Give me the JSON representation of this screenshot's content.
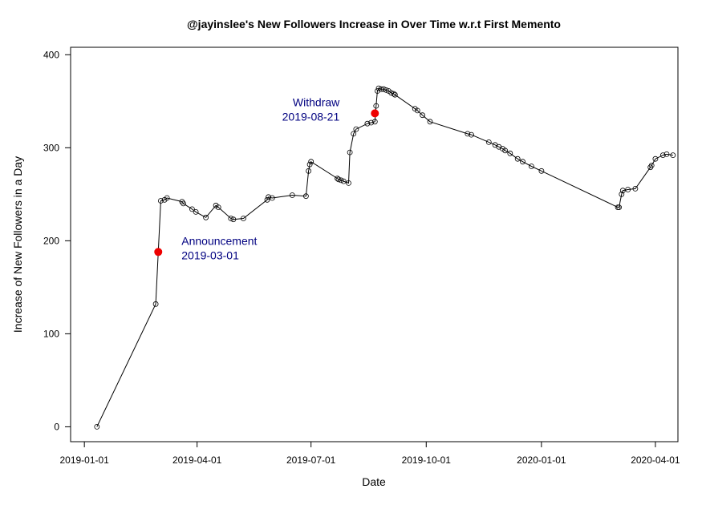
{
  "chart_data": {
    "type": "line",
    "title": "@jayinslee's New Followers Increase in Over Time w.r.t First Memento",
    "xlabel": "Date",
    "ylabel": "Increase of New Followers in a Day",
    "x_ticks": [
      "2019-01-01",
      "2019-04-01",
      "2019-07-01",
      "2019-10-01",
      "2020-01-01",
      "2020-04-01"
    ],
    "y_ticks": [
      0,
      100,
      200,
      300,
      400
    ],
    "xlim": [
      "2018-12-21",
      "2020-04-19"
    ],
    "ylim": [
      -16,
      408
    ],
    "grid": false,
    "series": [
      {
        "line_color": "#000000",
        "marker": "open-circle",
        "points": [
          [
            "2019-01-11",
            0
          ],
          [
            "2019-02-27",
            132
          ],
          [
            "2019-03-03",
            243
          ],
          [
            "2019-03-06",
            244
          ],
          [
            "2019-03-08",
            246
          ],
          [
            "2019-03-20",
            242
          ],
          [
            "2019-03-21",
            240
          ],
          [
            "2019-03-28",
            234
          ],
          [
            "2019-03-31",
            231
          ],
          [
            "2019-04-08",
            225
          ],
          [
            "2019-04-16",
            238
          ],
          [
            "2019-04-18",
            236
          ],
          [
            "2019-04-28",
            224
          ],
          [
            "2019-04-30",
            223
          ],
          [
            "2019-05-08",
            224
          ],
          [
            "2019-05-27",
            244
          ],
          [
            "2019-05-28",
            247
          ],
          [
            "2019-05-31",
            246
          ],
          [
            "2019-06-16",
            249
          ],
          [
            "2019-06-27",
            248
          ],
          [
            "2019-06-29",
            275
          ],
          [
            "2019-06-30",
            282
          ],
          [
            "2019-07-01",
            285
          ],
          [
            "2019-07-22",
            267
          ],
          [
            "2019-07-23",
            266
          ],
          [
            "2019-07-25",
            265
          ],
          [
            "2019-07-27",
            264
          ],
          [
            "2019-07-31",
            262
          ],
          [
            "2019-08-01",
            295
          ],
          [
            "2019-08-04",
            315
          ],
          [
            "2019-08-06",
            320
          ],
          [
            "2019-08-15",
            326
          ],
          [
            "2019-08-18",
            327
          ],
          [
            "2019-08-21",
            328
          ],
          [
            "2019-08-22",
            345
          ],
          [
            "2019-08-23",
            361
          ],
          [
            "2019-08-24",
            364
          ],
          [
            "2019-08-26",
            363
          ],
          [
            "2019-08-28",
            363
          ],
          [
            "2019-08-30",
            362
          ],
          [
            "2019-09-01",
            361
          ],
          [
            "2019-09-03",
            359
          ],
          [
            "2019-09-05",
            358
          ],
          [
            "2019-09-06",
            357
          ],
          [
            "2019-09-22",
            342
          ],
          [
            "2019-09-24",
            340
          ],
          [
            "2019-09-28",
            335
          ],
          [
            "2019-10-04",
            328
          ],
          [
            "2019-11-03",
            315
          ],
          [
            "2019-11-06",
            314
          ],
          [
            "2019-11-20",
            306
          ],
          [
            "2019-11-25",
            303
          ],
          [
            "2019-11-28",
            301
          ],
          [
            "2019-12-01",
            299
          ],
          [
            "2019-12-03",
            297
          ],
          [
            "2019-12-07",
            294
          ],
          [
            "2019-12-13",
            288
          ],
          [
            "2019-12-17",
            285
          ],
          [
            "2019-12-24",
            280
          ],
          [
            "2020-01-01",
            275
          ],
          [
            "2020-03-02",
            236
          ],
          [
            "2020-03-03",
            236
          ],
          [
            "2020-03-05",
            250
          ],
          [
            "2020-03-06",
            254
          ],
          [
            "2020-03-10",
            255
          ],
          [
            "2020-03-16",
            256
          ],
          [
            "2020-03-28",
            279
          ],
          [
            "2020-03-29",
            281
          ],
          [
            "2020-04-01",
            288
          ],
          [
            "2020-04-07",
            292
          ],
          [
            "2020-04-10",
            293
          ],
          [
            "2020-04-15",
            292
          ]
        ]
      }
    ],
    "events": [
      {
        "date": "2019-03-01",
        "value": 188,
        "label": "Announcement",
        "date_label": "2019-03-01",
        "marker_color": "#ee0000",
        "label_color": "#000080",
        "label_side": "right"
      },
      {
        "date": "2019-08-21",
        "value": 337,
        "label": "Withdraw",
        "date_label": "2019-08-21",
        "marker_color": "#ee0000",
        "label_color": "#000080",
        "label_side": "left"
      }
    ]
  }
}
